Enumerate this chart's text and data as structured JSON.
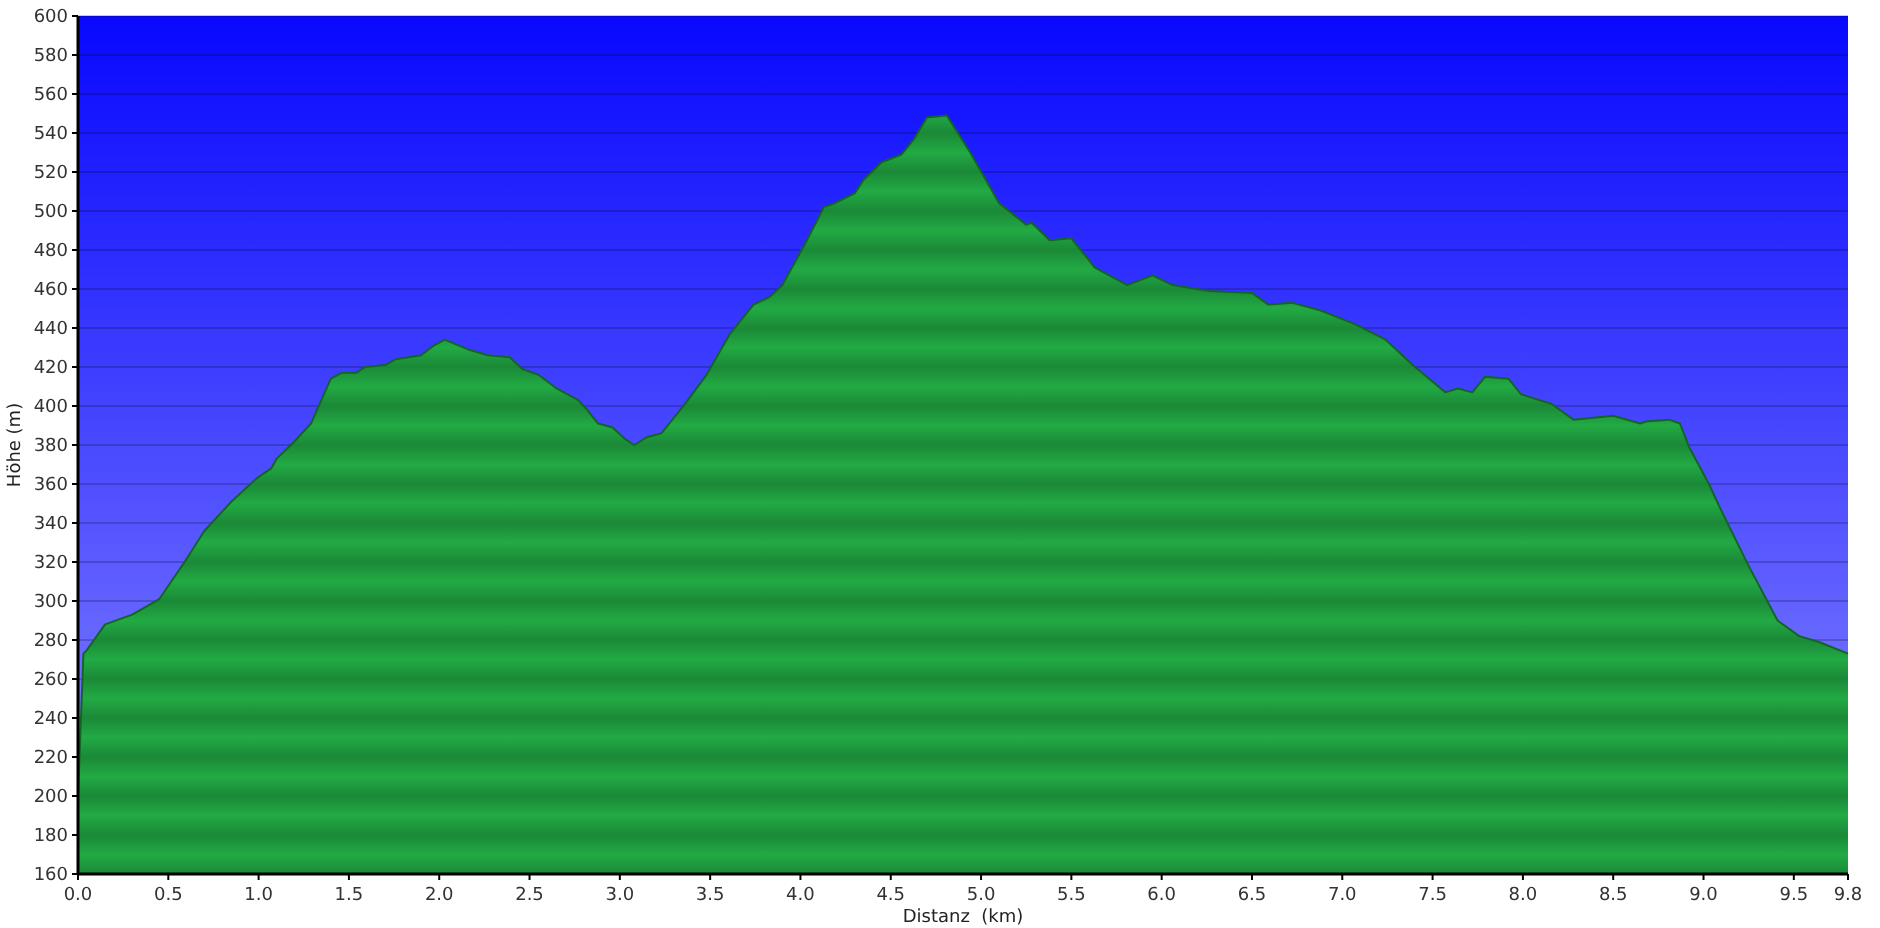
{
  "chart_data": {
    "type": "area",
    "xlabel": "Distanz  (km)",
    "ylabel": "Höhe (m)",
    "x": [
      0,
      0.03,
      0.05,
      0.15,
      0.3,
      0.45,
      0.59,
      0.7,
      0.85,
      0.99,
      1.07,
      1.1,
      1.19,
      1.29,
      1.4,
      1.46,
      1.54,
      1.59,
      1.7,
      1.76,
      1.9,
      1.97,
      2.03,
      2.16,
      2.27,
      2.39,
      2.46,
      2.55,
      2.65,
      2.77,
      2.81,
      2.88,
      2.96,
      3.03,
      3.08,
      3.15,
      3.23,
      3.36,
      3.48,
      3.61,
      3.74,
      3.83,
      3.9,
      4.03,
      4.13,
      4.19,
      4.3,
      4.35,
      4.45,
      4.56,
      4.63,
      4.7,
      4.81,
      4.94,
      5.1,
      5.25,
      5.28,
      5.38,
      5.5,
      5.63,
      5.81,
      5.95,
      6.06,
      6.26,
      6.5,
      6.59,
      6.72,
      6.88,
      7.07,
      7.24,
      7.39,
      7.57,
      7.64,
      7.72,
      7.79,
      7.92,
      7.99,
      8.16,
      8.28,
      8.5,
      8.65,
      8.68,
      8.81,
      8.87,
      8.92,
      9.03,
      9.09,
      9.25,
      9.41,
      9.53,
      9.64,
      9.8
    ],
    "series": [
      {
        "color": "#22aa44",
        "values": [
          200,
          273,
          275,
          288,
          293,
          301,
          320,
          336,
          351,
          363,
          368,
          373,
          381,
          391,
          414,
          417,
          417,
          420,
          421,
          424,
          426,
          431,
          434,
          429,
          426,
          425,
          419,
          416,
          409,
          403,
          399,
          391,
          389,
          383,
          380,
          384,
          386,
          401,
          416,
          437,
          452,
          456,
          462,
          484,
          502,
          504,
          509,
          516,
          525,
          529,
          537,
          548,
          549,
          530,
          504,
          493,
          494,
          485,
          486,
          471,
          462,
          467,
          462,
          459,
          458,
          452,
          453,
          449,
          442,
          434,
          421,
          407,
          409,
          407,
          415,
          414,
          406,
          401,
          393,
          395,
          391,
          392,
          393,
          391,
          379,
          360,
          348,
          318,
          290,
          282,
          279,
          273
        ]
      }
    ],
    "xlim": [
      0,
      9.8
    ],
    "ylim": [
      160,
      600
    ],
    "xticks": [
      {
        "value": 0,
        "label": "0.0"
      },
      {
        "value": 0.5,
        "label": "0.5"
      },
      {
        "value": 1,
        "label": "1.0"
      },
      {
        "value": 1.5,
        "label": "1.5"
      },
      {
        "value": 2,
        "label": "2.0"
      },
      {
        "value": 2.5,
        "label": "2.5"
      },
      {
        "value": 3,
        "label": "3.0"
      },
      {
        "value": 3.5,
        "label": "3.5"
      },
      {
        "value": 4,
        "label": "4.0"
      },
      {
        "value": 4.5,
        "label": "4.5"
      },
      {
        "value": 5,
        "label": "5.0"
      },
      {
        "value": 5.5,
        "label": "5.5"
      },
      {
        "value": 6,
        "label": "6.0"
      },
      {
        "value": 6.5,
        "label": "6.5"
      },
      {
        "value": 7,
        "label": "7.0"
      },
      {
        "value": 7.5,
        "label": "7.5"
      },
      {
        "value": 8,
        "label": "8.0"
      },
      {
        "value": 8.5,
        "label": "8.5"
      },
      {
        "value": 9,
        "label": "9.0"
      },
      {
        "value": 9.5,
        "label": "9.5"
      },
      {
        "value": 9.8,
        "label": "9.8"
      }
    ],
    "yticks": [
      160,
      180,
      200,
      220,
      240,
      260,
      280,
      300,
      320,
      340,
      360,
      380,
      400,
      420,
      440,
      460,
      480,
      500,
      520,
      540,
      560,
      580,
      600
    ],
    "grid": "y"
  }
}
